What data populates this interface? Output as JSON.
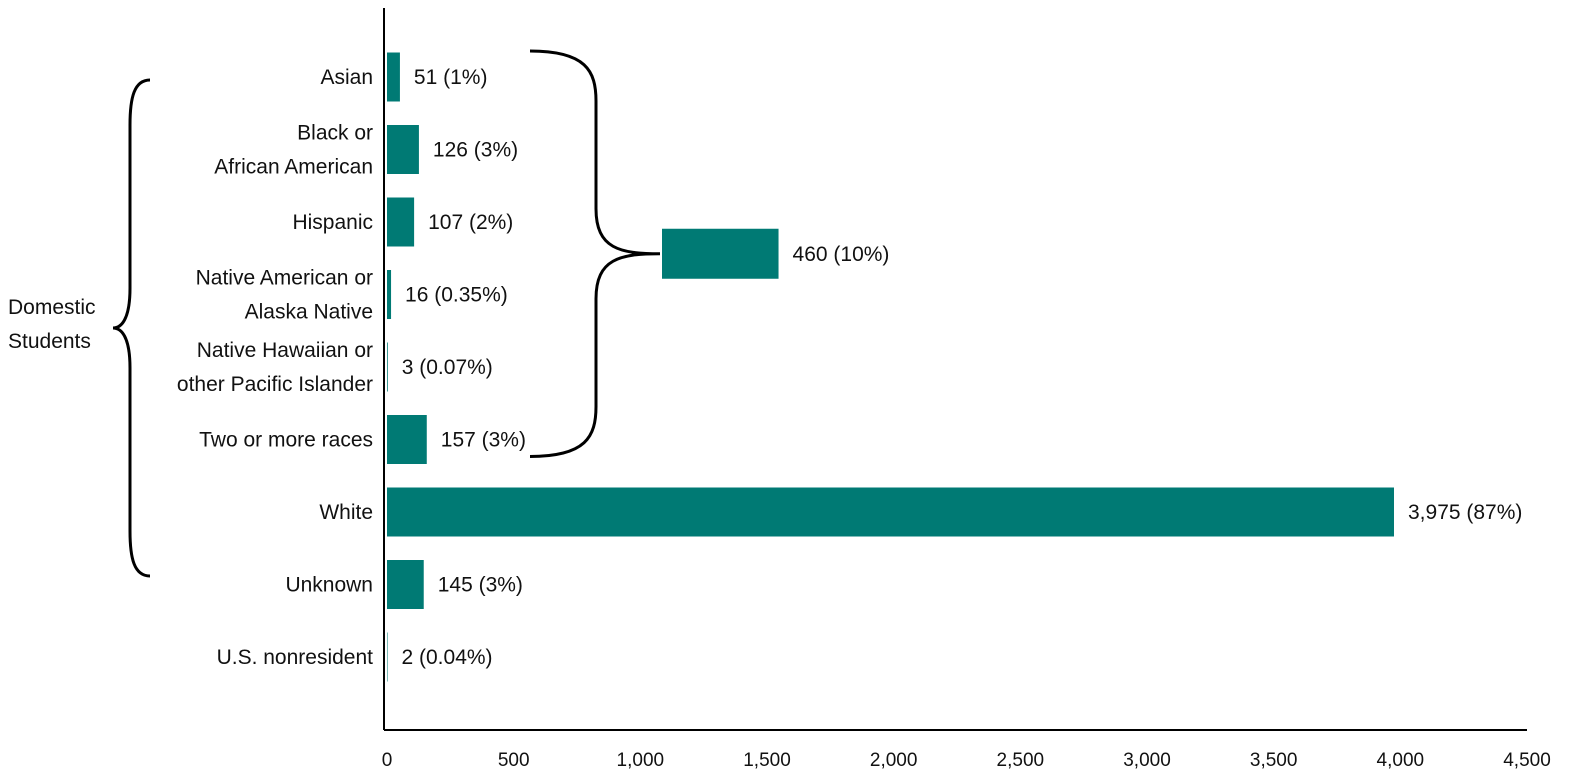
{
  "chart_data": {
    "type": "bar",
    "orientation": "horizontal",
    "title": "",
    "xlabel": "",
    "ylabel": "",
    "xlim": [
      0,
      4500
    ],
    "x_ticks": [
      0,
      500,
      1000,
      1500,
      2000,
      2500,
      3000,
      3500,
      4000,
      4500
    ],
    "x_tick_labels": [
      "0",
      "500",
      "1,000",
      "1,500",
      "2,000",
      "2,500",
      "3,000",
      "3,500",
      "4,000",
      "4,500"
    ],
    "grid": false,
    "bar_color": "#007A74",
    "categories": [
      [
        "Asian"
      ],
      [
        "Black or",
        "African American"
      ],
      [
        "Hispanic"
      ],
      [
        "Native American or",
        "Alaska Native"
      ],
      [
        "Native Hawaiian or",
        "other Pacific Islander"
      ],
      [
        "Two or more races"
      ],
      [
        "White"
      ],
      [
        "Unknown"
      ],
      [
        "U.S. nonresident"
      ]
    ],
    "values": [
      51,
      126,
      107,
      16,
      3,
      157,
      3975,
      145,
      2
    ],
    "data_labels": [
      "51 (1%)",
      "126 (3%)",
      "107 (2%)",
      "16 (0.35%)",
      "3 (0.07%)",
      "157 (3%)",
      "3,975 (87%)",
      "145 (3%)",
      "2 (0.04%)"
    ],
    "summary_bar": {
      "value": 460,
      "label": "460 (10%)",
      "spans_categories": [
        "Asian",
        "Two or more races"
      ]
    },
    "group_bracket": {
      "label": [
        "Domestic",
        "Students"
      ],
      "spans_categories": [
        "Asian",
        "White"
      ]
    }
  }
}
